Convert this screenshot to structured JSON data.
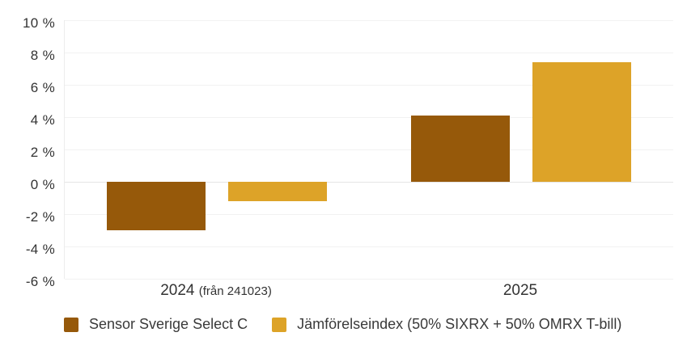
{
  "chart": {
    "background_color": "#ffffff",
    "grid_color": "#f2f2f2",
    "zero_line_color": "#e5e5e5",
    "axis_line_color": "#ececec",
    "text_color": "#333333"
  },
  "chart_data": {
    "type": "bar",
    "title": "",
    "xlabel": "",
    "ylabel": "",
    "categories": [
      {
        "label": "2024",
        "note": "(från 241023)"
      },
      {
        "label": "2025",
        "note": ""
      }
    ],
    "series": [
      {
        "name": "Sensor Sverige Select C",
        "color": "#96590a",
        "values": [
          -3.0,
          4.1
        ]
      },
      {
        "name": "Jämförelseindex (50% SIXRX + 50% OMRX T-bill)",
        "color": "#dda328",
        "values": [
          -1.2,
          7.4
        ]
      }
    ],
    "ylim": [
      -6,
      10
    ],
    "ytick_step": 2,
    "ytick_labels": [
      "10 %",
      "8 %",
      "6 %",
      "4 %",
      "2 %",
      "0 %",
      "-2 %",
      "-4 %",
      "-6 %"
    ],
    "grid": true,
    "legend_position": "bottom"
  }
}
